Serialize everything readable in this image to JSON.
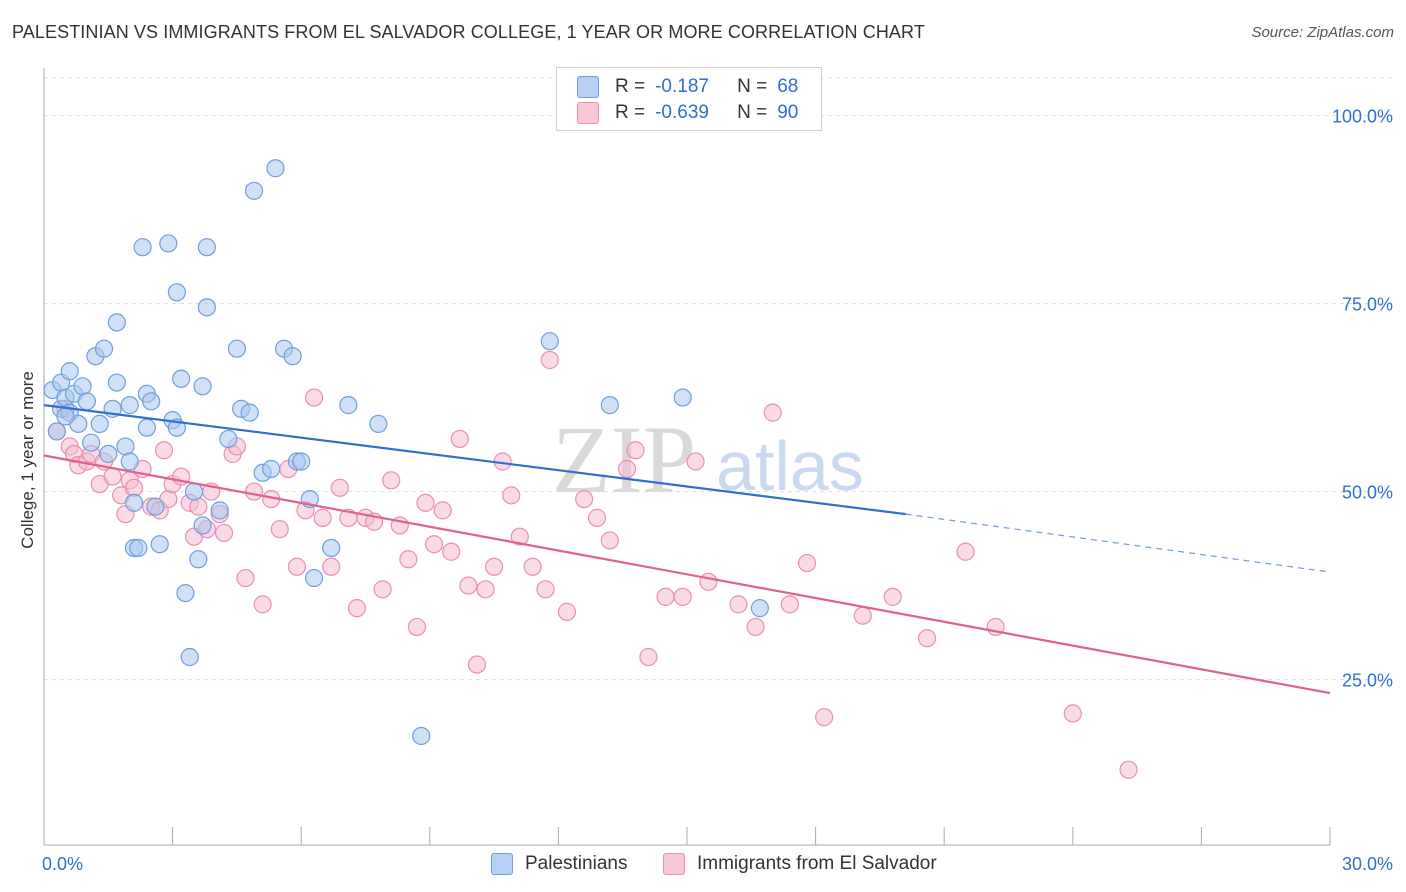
{
  "header": {
    "title": "PALESTINIAN VS IMMIGRANTS FROM EL SALVADOR COLLEGE, 1 YEAR OR MORE CORRELATION CHART",
    "source": "Source: ZipAtlas.com"
  },
  "legend": {
    "rows": [
      {
        "r_label": "R =",
        "r_value": "-0.187",
        "n_label": "N =",
        "n_value": "68"
      },
      {
        "r_label": "R =",
        "r_value": "-0.639",
        "n_label": "N =",
        "n_value": "90"
      }
    ]
  },
  "watermark": {
    "zip": "ZIP",
    "atlas": "atlas"
  },
  "colors": {
    "blue_fill": "#a9c6ee",
    "blue_stroke": "#6f9fdc",
    "blue_line": "#2f6fd0",
    "pink_fill": "#f6bcd0",
    "pink_stroke": "#e98fb0",
    "pink_line": "#e0608e",
    "axis_text": "#2f6fd0",
    "grid": "#dddddd"
  },
  "chart_data": {
    "type": "scatter",
    "title": "PALESTINIAN VS IMMIGRANTS FROM EL SALVADOR COLLEGE, 1 YEAR OR MORE CORRELATION CHART",
    "xlabel": "",
    "ylabel": "College, 1 year or more",
    "xlim": [
      0,
      30
    ],
    "ylim": [
      3,
      105
    ],
    "x_tick_labels": [
      {
        "value": 0,
        "label": "0.0%"
      },
      {
        "value": 30,
        "label": "30.0%"
      }
    ],
    "y_tick_labels": [
      {
        "value": 100,
        "label": "100.0%"
      },
      {
        "value": 75,
        "label": "75.0%"
      },
      {
        "value": 50,
        "label": "50.0%"
      },
      {
        "value": 25,
        "label": "25.0%"
      }
    ],
    "series": [
      {
        "name": "Palestinians",
        "r": -0.187,
        "n": 68,
        "trend": {
          "x0": 0,
          "y0": 61.5,
          "x1": 20.1,
          "y1": 47.0,
          "x_dash_end": 30,
          "y_dash_end": 39.3
        },
        "points": [
          [
            0.2,
            63.5
          ],
          [
            0.4,
            64.5
          ],
          [
            0.4,
            61.0
          ],
          [
            0.5,
            62.5
          ],
          [
            0.6,
            60.5
          ],
          [
            0.6,
            66.0
          ],
          [
            0.7,
            63.0
          ],
          [
            0.8,
            59.0
          ],
          [
            0.9,
            64.0
          ],
          [
            1.0,
            62.0
          ],
          [
            1.1,
            56.5
          ],
          [
            1.2,
            68.0
          ],
          [
            1.4,
            69.0
          ],
          [
            1.6,
            61.0
          ],
          [
            1.7,
            64.5
          ],
          [
            1.7,
            72.5
          ],
          [
            1.9,
            56.0
          ],
          [
            2.0,
            54.0
          ],
          [
            2.1,
            48.5
          ],
          [
            2.1,
            42.5
          ],
          [
            2.2,
            42.5
          ],
          [
            2.3,
            82.5
          ],
          [
            2.4,
            58.5
          ],
          [
            2.4,
            63.0
          ],
          [
            2.5,
            62.0
          ],
          [
            2.6,
            48.0
          ],
          [
            2.7,
            43.0
          ],
          [
            2.9,
            83.0
          ],
          [
            3.0,
            59.5
          ],
          [
            3.1,
            58.5
          ],
          [
            3.1,
            76.5
          ],
          [
            3.2,
            65.0
          ],
          [
            3.3,
            36.5
          ],
          [
            3.4,
            28.0
          ],
          [
            3.5,
            50.0
          ],
          [
            3.6,
            41.0
          ],
          [
            3.7,
            64.0
          ],
          [
            3.7,
            45.5
          ],
          [
            3.8,
            74.5
          ],
          [
            3.8,
            82.5
          ],
          [
            4.1,
            47.5
          ],
          [
            4.3,
            57.0
          ],
          [
            4.5,
            69.0
          ],
          [
            4.6,
            61.0
          ],
          [
            4.8,
            60.5
          ],
          [
            4.9,
            90.0
          ],
          [
            5.1,
            52.5
          ],
          [
            5.3,
            53.0
          ],
          [
            5.4,
            93.0
          ],
          [
            5.6,
            69.0
          ],
          [
            5.8,
            68.0
          ],
          [
            5.9,
            54.0
          ],
          [
            6.0,
            54.0
          ],
          [
            6.2,
            49.0
          ],
          [
            6.3,
            38.5
          ],
          [
            6.7,
            42.5
          ],
          [
            7.1,
            61.5
          ],
          [
            7.8,
            59.0
          ],
          [
            8.8,
            17.5
          ],
          [
            11.8,
            70.0
          ],
          [
            13.2,
            61.5
          ],
          [
            14.9,
            62.5
          ],
          [
            16.7,
            34.5
          ],
          [
            0.3,
            58.0
          ],
          [
            0.5,
            60.0
          ],
          [
            1.3,
            59.0
          ],
          [
            1.5,
            55.0
          ],
          [
            2.0,
            61.5
          ]
        ]
      },
      {
        "name": "Immigrants from El Salvador",
        "r": -0.639,
        "n": 90,
        "trend": {
          "x0": 0,
          "y0": 54.8,
          "x1": 30,
          "y1": 23.2
        },
        "points": [
          [
            0.3,
            58.0
          ],
          [
            0.5,
            61.0
          ],
          [
            0.6,
            56.0
          ],
          [
            0.7,
            55.0
          ],
          [
            0.8,
            53.5
          ],
          [
            1.0,
            54.0
          ],
          [
            1.1,
            55.0
          ],
          [
            1.3,
            51.0
          ],
          [
            1.4,
            54.0
          ],
          [
            1.6,
            52.0
          ],
          [
            1.8,
            49.5
          ],
          [
            1.9,
            47.0
          ],
          [
            2.0,
            51.5
          ],
          [
            2.1,
            50.5
          ],
          [
            2.3,
            53.0
          ],
          [
            2.5,
            48.0
          ],
          [
            2.7,
            47.5
          ],
          [
            2.8,
            55.5
          ],
          [
            2.9,
            49.0
          ],
          [
            3.0,
            51.0
          ],
          [
            3.2,
            52.0
          ],
          [
            3.4,
            48.5
          ],
          [
            3.5,
            44.0
          ],
          [
            3.6,
            48.0
          ],
          [
            3.8,
            45.0
          ],
          [
            3.9,
            50.0
          ],
          [
            4.1,
            47.0
          ],
          [
            4.2,
            44.5
          ],
          [
            4.4,
            55.0
          ],
          [
            4.5,
            56.0
          ],
          [
            4.7,
            38.5
          ],
          [
            4.9,
            50.0
          ],
          [
            5.1,
            35.0
          ],
          [
            5.3,
            49.0
          ],
          [
            5.5,
            45.0
          ],
          [
            5.7,
            53.0
          ],
          [
            5.9,
            40.0
          ],
          [
            6.1,
            47.5
          ],
          [
            6.3,
            62.5
          ],
          [
            6.5,
            46.5
          ],
          [
            6.7,
            40.0
          ],
          [
            6.9,
            50.5
          ],
          [
            7.1,
            46.5
          ],
          [
            7.3,
            34.5
          ],
          [
            7.5,
            46.5
          ],
          [
            7.7,
            46.0
          ],
          [
            7.9,
            37.0
          ],
          [
            8.1,
            51.5
          ],
          [
            8.3,
            45.5
          ],
          [
            8.5,
            41.0
          ],
          [
            8.7,
            32.0
          ],
          [
            8.9,
            48.5
          ],
          [
            9.1,
            43.0
          ],
          [
            9.3,
            47.5
          ],
          [
            9.5,
            42.0
          ],
          [
            9.7,
            57.0
          ],
          [
            9.9,
            37.5
          ],
          [
            10.1,
            27.0
          ],
          [
            10.3,
            37.0
          ],
          [
            10.5,
            40.0
          ],
          [
            10.7,
            54.0
          ],
          [
            10.9,
            49.5
          ],
          [
            11.1,
            44.0
          ],
          [
            11.4,
            40.0
          ],
          [
            11.7,
            37.0
          ],
          [
            11.8,
            67.5
          ],
          [
            12.2,
            34.0
          ],
          [
            12.6,
            49.0
          ],
          [
            12.9,
            46.5
          ],
          [
            13.2,
            43.5
          ],
          [
            13.6,
            53.0
          ],
          [
            13.8,
            55.5
          ],
          [
            14.1,
            28.0
          ],
          [
            14.5,
            36.0
          ],
          [
            14.9,
            36.0
          ],
          [
            15.2,
            54.0
          ],
          [
            15.5,
            38.0
          ],
          [
            16.2,
            35.0
          ],
          [
            16.6,
            32.0
          ],
          [
            17.0,
            60.5
          ],
          [
            17.4,
            35.0
          ],
          [
            17.8,
            40.5
          ],
          [
            18.2,
            20.0
          ],
          [
            19.1,
            33.5
          ],
          [
            19.8,
            36.0
          ],
          [
            20.6,
            30.5
          ],
          [
            21.5,
            42.0
          ],
          [
            22.2,
            32.0
          ],
          [
            24.0,
            20.5
          ],
          [
            25.3,
            13.0
          ]
        ]
      }
    ]
  },
  "bottom_legend": {
    "series_a": "Palestinians",
    "series_b": "Immigrants from El Salvador"
  }
}
